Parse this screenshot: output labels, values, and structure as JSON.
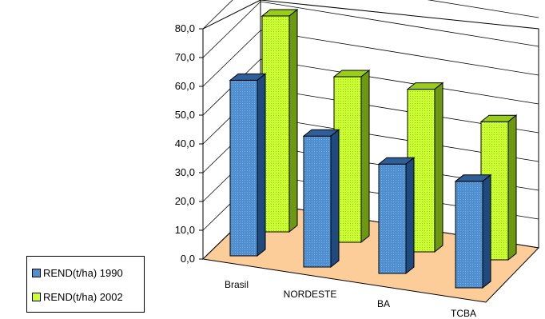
{
  "chart_data": {
    "type": "bar",
    "categories": [
      "Brasil",
      "NORDESTE",
      "BA",
      "TCBA"
    ],
    "series": [
      {
        "name": "REND(t/ha) 1990",
        "values": [
          61.0,
          45.5,
          38.0,
          37.0
        ],
        "color": "#4f8fd0",
        "pattern": "dots"
      },
      {
        "name": "REND(t/ha) 2002",
        "values": [
          75.0,
          57.5,
          56.5,
          48.0
        ],
        "color": "#ccff33",
        "pattern": "dots"
      }
    ],
    "y_ticks": [
      "0,0",
      "10,0",
      "20,0",
      "30,0",
      "40,0",
      "50,0",
      "60,0",
      "70,0",
      "80,0"
    ],
    "ylim": [
      0,
      80
    ],
    "grid": true,
    "legend_position": "bottom-left",
    "floor_color": "#fccc99",
    "title": "",
    "xlabel": "",
    "ylabel": ""
  }
}
